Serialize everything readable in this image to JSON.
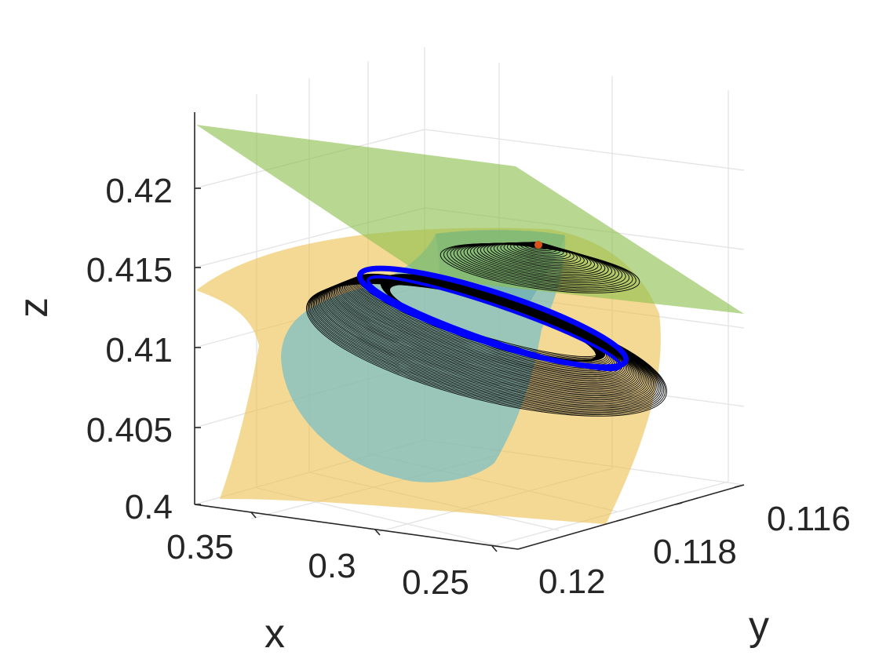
{
  "chart_data": {
    "type": "3d-surface-trajectory",
    "xlabel": "x",
    "ylabel": "y",
    "zlabel": "z",
    "xlim": [
      0.23,
      0.37
    ],
    "ylim": [
      0.1154,
      0.1204
    ],
    "zlim": [
      0.4,
      0.424
    ],
    "x_ticks": [
      0.35,
      0.3,
      0.25
    ],
    "x_tick_labels": [
      "0.35",
      "0.3",
      "0.25"
    ],
    "y_ticks": [
      0.116,
      0.118,
      0.12
    ],
    "y_tick_labels": [
      "0.116",
      "0.118",
      "0.12"
    ],
    "z_ticks": [
      0.4,
      0.405,
      0.41,
      0.415,
      0.42
    ],
    "z_tick_labels": [
      "0.4",
      "0.405",
      "0.41",
      "0.415",
      "0.42"
    ],
    "grid": true,
    "colors": {
      "plane": "#8cbf4d",
      "yellow_surface": "#edc253",
      "cyan_surface": "#59b8d6",
      "trajectory": "#000000",
      "limit_cycle": "#0000ff",
      "equilibrium": "#d95319",
      "axis": "#262626",
      "grid": "#e3e3e3"
    }
  }
}
